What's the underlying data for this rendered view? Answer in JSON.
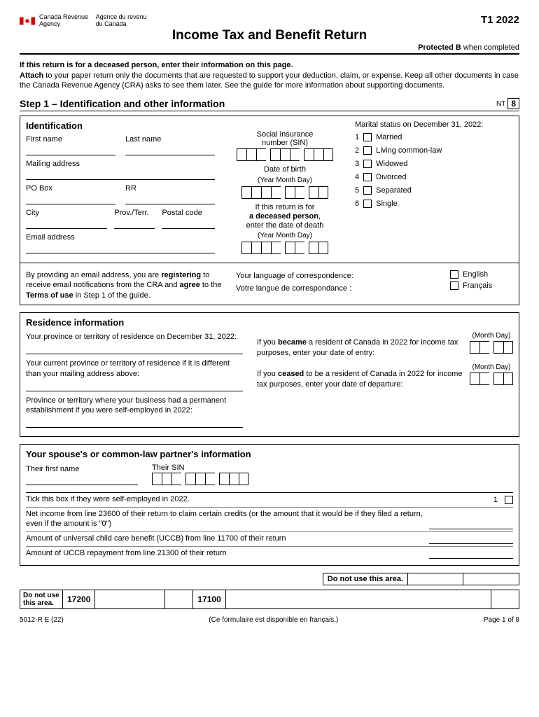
{
  "header": {
    "agency_en_1": "Canada Revenue",
    "agency_en_2": "Agency",
    "agency_fr_1": "Agence du revenu",
    "agency_fr_2": "du Canada",
    "form_code": "T1 2022",
    "title": "Income Tax and Benefit Return",
    "protected_b": "Protected B",
    "protected_suffix": " when completed"
  },
  "intro": {
    "deceased": "If this return is for a deceased person, enter their information on this page.",
    "attach_b": "Attach",
    "attach_text": " to your paper return only the documents that are requested to support your deduction, claim, or expense. Keep all other documents in case the Canada Revenue Agency (CRA) asks to see them later. See the guide for more information about supporting documents."
  },
  "step1": {
    "title": "Step 1 – Identification and other information",
    "nt": "NT",
    "nt_num": "8"
  },
  "ident": {
    "heading": "Identification",
    "first_name": "First name",
    "last_name": "Last name",
    "mailing": "Mailing address",
    "po": "PO Box",
    "rr": "RR",
    "city": "City",
    "prov": "Prov./Terr.",
    "postal": "Postal code",
    "email": "Email address",
    "sin_label1": "Social insurance",
    "sin_label2": "number (SIN)",
    "dob_label": "Date of birth",
    "ymd": "(Year  Month  Day)",
    "deceased1": "If this return is for",
    "deceased2": "a deceased person",
    "deceased3": "enter the date of death",
    "marital_label": "Marital status on December 31, 2022:",
    "marital": [
      {
        "n": "1",
        "label": "Married"
      },
      {
        "n": "2",
        "label": "Living common-law"
      },
      {
        "n": "3",
        "label": "Widowed"
      },
      {
        "n": "4",
        "label": "Divorced"
      },
      {
        "n": "5",
        "label": "Separated"
      },
      {
        "n": "6",
        "label": "Single"
      }
    ],
    "email_note1": "By providing an email address, you are ",
    "email_note_b1": "registering",
    "email_note2": " to receive email notifications from the CRA and ",
    "email_note_b2": "agree",
    "email_note3": " to the ",
    "email_note_b3": "Terms of use",
    "email_note4": " in Step 1 of the guide.",
    "lang_en_q": "Your language of correspondence:",
    "lang_fr_q": "Votre langue de correspondance :",
    "lang_en": "English",
    "lang_fr": "Français"
  },
  "residence": {
    "heading": "Residence information",
    "q1": "Your province or territory of residence on December 31, 2022:",
    "q2": "Your current province or territory of residence if it is different than your mailing address above:",
    "q3": "Province or territory where your business had a permanent establishment if you were self-employed in 2022:",
    "became1": "If you ",
    "became_b": "became",
    "became2": " a resident of Canada in 2022 for income tax purposes, enter your date of entry:",
    "ceased1": "If you ",
    "ceased_b": "ceased",
    "ceased2": " to be a resident of Canada in 2022 for income tax purposes, enter your date of departure:",
    "month_day": "(Month Day)"
  },
  "spouse": {
    "heading": "Your spouse's or common-law partner's information",
    "first_name": "Their first name",
    "sin": "Their SIN",
    "tick": "Tick this box if they were self-employed in 2022.",
    "tick_num": "1",
    "line1": "Net income from line 23600 of their return to claim certain credits (or the amount that it would be if they filed a return, even if the amount is \"0\")",
    "line2": "Amount of universal child care benefit (UCCB) from line 11700 of their return",
    "line3": "Amount of UCCB repayment from line 21300 of their return"
  },
  "bottom": {
    "dont_use": "Do not use this area.",
    "dont_use_short1": "Do not use",
    "dont_use_short2": "this area.",
    "code1": "17200",
    "code2": "17100",
    "form_id": "5012-R E (22)",
    "fr_note": "(Ce formulaire est disponible en français.)",
    "page": "Page 1 of 8"
  }
}
